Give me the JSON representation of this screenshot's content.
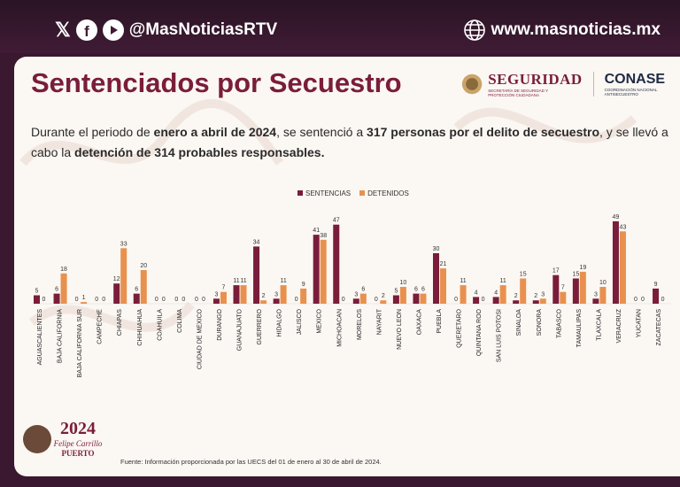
{
  "header": {
    "social_handle": "@MasNoticiasRTV",
    "website": "www.masnoticias.mx",
    "icons": [
      "x-icon",
      "facebook-icon",
      "youtube-icon",
      "globe-icon"
    ]
  },
  "card": {
    "title": "Sentenciados por Secuestro",
    "seguridad": "SEGURIDAD",
    "seguridad_sub": "SECRETARÍA DE SEGURIDAD Y PROTECCIÓN CIUDADANA",
    "conase": "CONASE",
    "conase_sub": "COORDINACIÓN NACIONAL ANTISECUESTRO",
    "para_1": "Durante el periodo de ",
    "para_2": "enero a abril de 2024",
    "para_3": ", se sentenció a ",
    "para_4": "317 personas por el delito de secuestro",
    "para_5": ", y se llevó a cabo la ",
    "para_6": "detención de 314 probables responsables.",
    "source": "Fuente: Información proporcionada por las UECS del 01 de enero al 30 de abril de 2024.",
    "logo_year": "2024",
    "logo_name_1": "Felipe Carrillo",
    "logo_name_2": "PUERTO"
  },
  "colors": {
    "sentencias": "#7a1d3a",
    "detenidos": "#e8914f",
    "title": "#7a1d3a"
  },
  "chart_data": {
    "type": "bar",
    "legend_position": "top-center",
    "categories": [
      "AGUASCALIENTES",
      "BAJA CALIFORNIA",
      "BAJA CALIFORNIA SUR",
      "CAMPECHE",
      "CHIAPAS",
      "CHIHUAHUA",
      "COAHUILA",
      "COLIMA",
      "CIUDAD DE MEXICO",
      "DURANGO",
      "GUANAJUATO",
      "GUERRERO",
      "HIDALGO",
      "JALISCO",
      "MEXICO",
      "MICHOACAN",
      "MORELOS",
      "NAYARIT",
      "NUEVO LEON",
      "OAXACA",
      "PUEBLA",
      "QUERETARO",
      "QUINTANA ROO",
      "SAN LUIS POTOSI",
      "SINALOA",
      "SONORA",
      "TABASCO",
      "TAMAULIPAS",
      "TLAXCALA",
      "VERACRUZ",
      "YUCATAN",
      "ZACATECAS"
    ],
    "series": [
      {
        "name": "SENTENCIAS",
        "values": [
          5,
          6,
          0,
          0,
          12,
          6,
          0,
          0,
          0,
          3,
          11,
          34,
          3,
          0,
          41,
          47,
          3,
          0,
          5,
          6,
          30,
          0,
          4,
          4,
          2,
          2,
          17,
          15,
          3,
          49,
          0,
          9
        ]
      },
      {
        "name": "DETENIDOS",
        "values": [
          0,
          18,
          1,
          0,
          33,
          20,
          0,
          0,
          0,
          7,
          11,
          2,
          11,
          9,
          38,
          0,
          6,
          2,
          10,
          6,
          21,
          11,
          0,
          11,
          15,
          3,
          7,
          19,
          10,
          43,
          0,
          0
        ]
      }
    ]
  }
}
